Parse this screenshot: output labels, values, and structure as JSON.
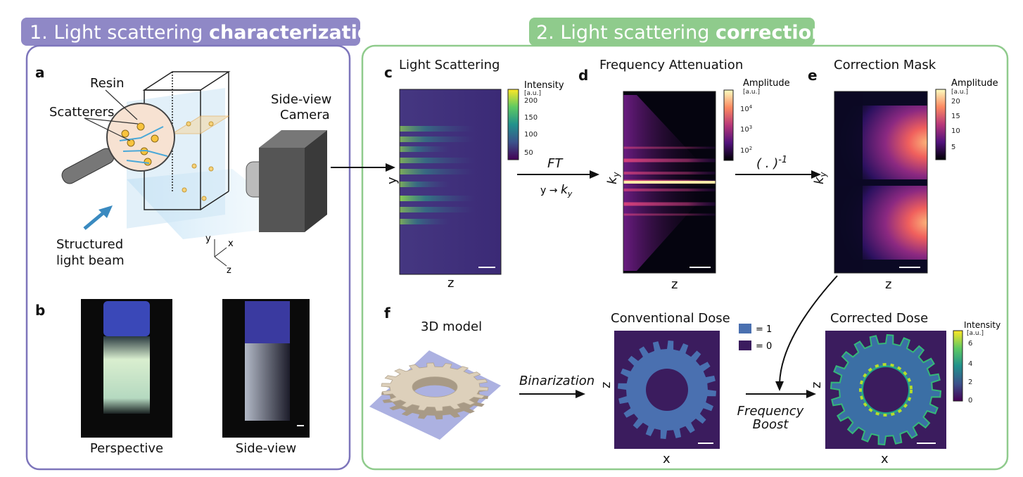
{
  "headers": {
    "left": {
      "prefix": "1. Light scattering ",
      "bold": "characterization",
      "color": "#8f88c6"
    },
    "right": {
      "prefix": "2. Light scattering ",
      "bold": "correction",
      "color": "#8fcb8c"
    }
  },
  "panel_a": {
    "label": "a",
    "resin": "Resin",
    "scatterers": "Scatterers",
    "camera": [
      "Side-view",
      "Camera"
    ],
    "beam": [
      "Structured",
      "light beam"
    ],
    "axes": {
      "y": "y",
      "x": "x",
      "z": "z"
    }
  },
  "panel_b": {
    "label": "b",
    "left_caption": "Perspective",
    "right_caption": "Side-view"
  },
  "panel_c": {
    "label": "c",
    "title": "Light Scattering",
    "ylabel": "y",
    "xlabel": "z",
    "colorbar": {
      "title": "Intensity",
      "unit": "[a.u.]",
      "ticks": [
        "200",
        "150",
        "100",
        "50"
      ],
      "colormap": "viridis"
    }
  },
  "arrow_cd": {
    "top": "FT",
    "bottom_from": "y",
    "bottom_to": "k",
    "bottom_sub": "y"
  },
  "panel_d": {
    "label": "d",
    "title": "Frequency Attenuation",
    "ylabel": "k",
    "ylabel_sub": "y",
    "xlabel": "z",
    "colorbar": {
      "title": "Amplitude",
      "unit": "[a.u.]",
      "ticks": [
        "10",
        "10",
        "10"
      ],
      "exponents": [
        "4",
        "3",
        "2"
      ],
      "scale": "log",
      "colormap": "magma"
    }
  },
  "arrow_de": {
    "base": "( . )",
    "exp": "-1"
  },
  "panel_e": {
    "label": "e",
    "title": "Correction Mask",
    "ylabel": "k",
    "ylabel_sub": "y",
    "xlabel": "z",
    "colorbar": {
      "title": "Amplitude",
      "unit": "[a.u.]",
      "ticks": [
        "20",
        "15",
        "10",
        "5"
      ],
      "colormap": "magma"
    }
  },
  "panel_f": {
    "label": "f",
    "model_title": "3D model",
    "binarization": "Binarization",
    "conventional": {
      "title": "Conventional Dose",
      "xlabel": "x",
      "ylabel": "z",
      "legend": [
        {
          "label": "= 1",
          "color": "#4a70b0"
        },
        {
          "label": "= 0",
          "color": "#3b1c5e"
        }
      ]
    },
    "boost": [
      "Frequency",
      "Boost"
    ],
    "corrected": {
      "title": "Corrected Dose",
      "xlabel": "x",
      "ylabel": "z",
      "colorbar": {
        "title": "Intensity",
        "unit": "[a.u.]",
        "ticks": [
          "6",
          "4",
          "2",
          "0"
        ],
        "colormap": "viridis"
      }
    }
  }
}
